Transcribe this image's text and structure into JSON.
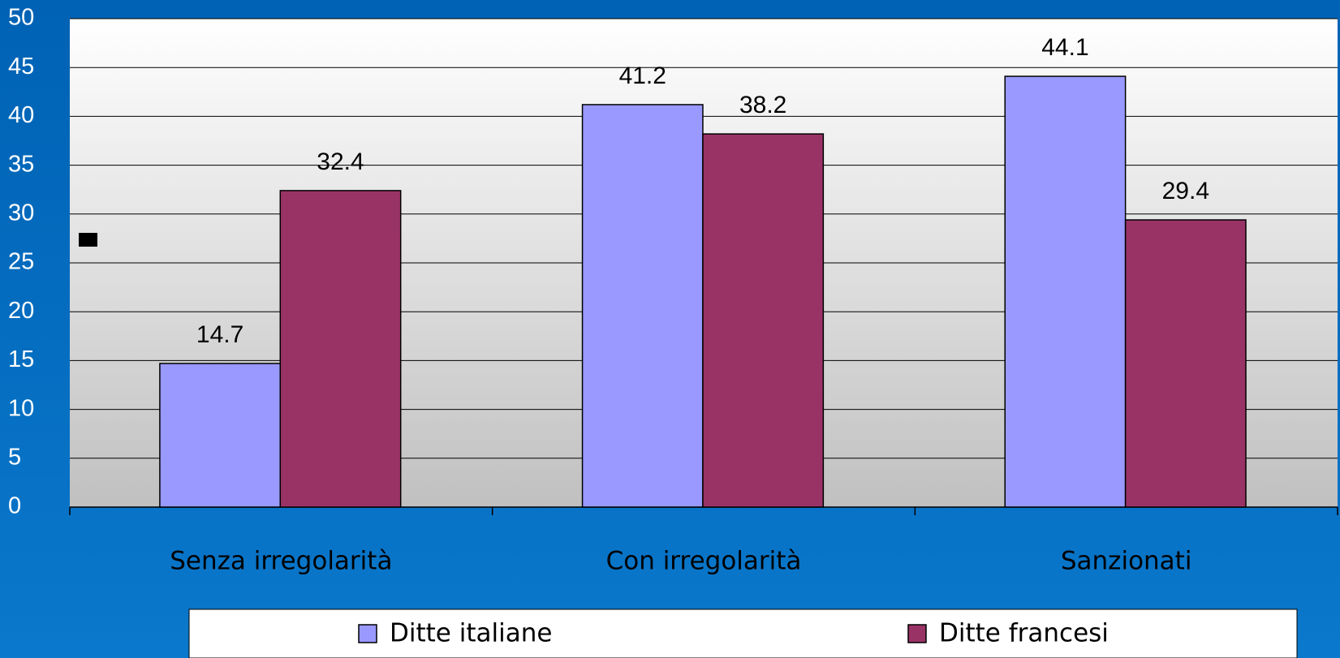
{
  "chart_data": {
    "type": "bar",
    "categories": [
      "Senza irregolarità",
      "Con irregolarità",
      "Sanzionati"
    ],
    "series": [
      {
        "name": "Ditte italiane",
        "color": "#9999ff",
        "values": [
          14.7,
          41.2,
          44.1
        ]
      },
      {
        "name": "Ditte francesi",
        "color": "#993366",
        "values": [
          32.4,
          38.2,
          29.4
        ]
      }
    ],
    "ylim": [
      0,
      50
    ],
    "yticks": [
      0,
      5,
      10,
      15,
      20,
      25,
      30,
      35,
      40,
      45,
      50
    ],
    "grid": true,
    "legend": "bottom"
  }
}
